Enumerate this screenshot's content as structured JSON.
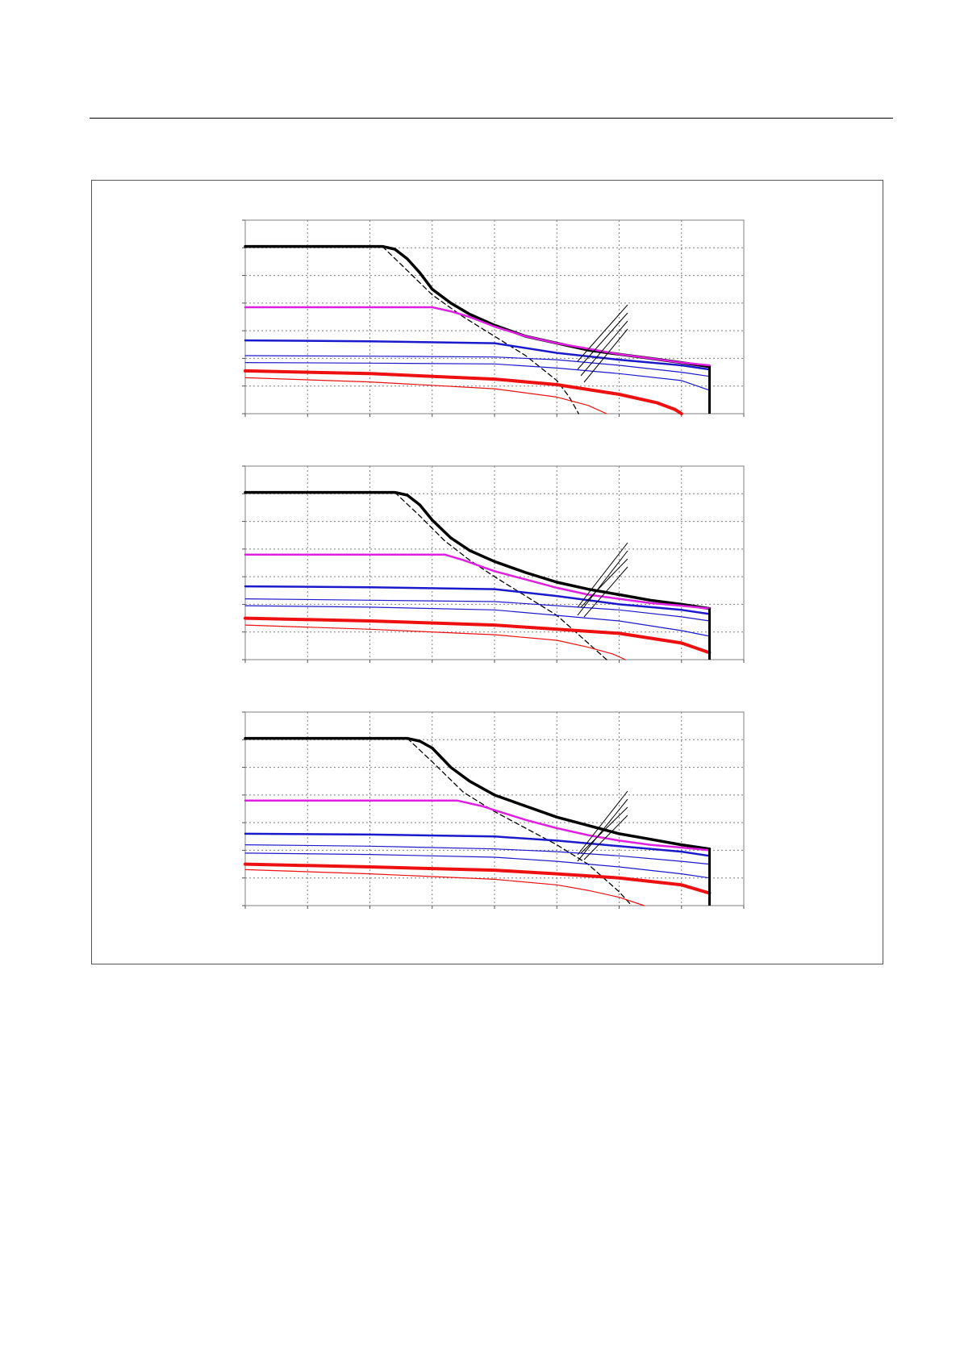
{
  "page": {
    "background": "#ffffff"
  },
  "colors": {
    "black": "#000000",
    "magenta": "#e020e0",
    "blue": "#1a1acc",
    "red": "#ee1010",
    "grid": "#7f7f7f"
  },
  "chart_data": [
    {
      "type": "line",
      "title": "",
      "xlabel": "",
      "ylabel": "",
      "xlim": [
        0,
        8
      ],
      "ylim": [
        0,
        7
      ],
      "x_gridlines": [
        1,
        2,
        3,
        4,
        5,
        6,
        7
      ],
      "y_gridlines": [
        1,
        2,
        3,
        4,
        5,
        6
      ],
      "grid": true,
      "end_x": 7.45,
      "series": [
        {
          "color": "black",
          "width": 3.5,
          "dash": false,
          "x": [
            0,
            2.2,
            2.4,
            2.6,
            2.8,
            3.0,
            3.3,
            3.6,
            4.0,
            4.5,
            5.0,
            5.5,
            6.0,
            6.5,
            7.0,
            7.45
          ],
          "y": [
            6.05,
            6.05,
            5.95,
            5.6,
            5.1,
            4.5,
            4.0,
            3.6,
            3.2,
            2.8,
            2.55,
            2.3,
            2.15,
            2.0,
            1.85,
            1.7
          ]
        },
        {
          "color": "black",
          "width": 1.3,
          "dash": true,
          "x": [
            2.2,
            2.5,
            3.0,
            3.5,
            4.0,
            4.5,
            5.0,
            5.2,
            5.35
          ],
          "y": [
            6.05,
            5.4,
            4.3,
            3.5,
            2.8,
            2.1,
            1.2,
            0.6,
            0.0
          ]
        },
        {
          "color": "magenta",
          "width": 2.5,
          "dash": false,
          "x": [
            0,
            3.0,
            3.3,
            3.6,
            4.0,
            4.5,
            5.0,
            5.5,
            6.0,
            6.5,
            7.0,
            7.45
          ],
          "y": [
            3.85,
            3.85,
            3.7,
            3.5,
            3.15,
            2.8,
            2.55,
            2.35,
            2.15,
            2.0,
            1.85,
            1.75
          ]
        },
        {
          "color": "blue",
          "width": 2.5,
          "dash": false,
          "x": [
            0,
            2.0,
            4.0,
            5.0,
            6.0,
            7.0,
            7.45
          ],
          "y": [
            2.65,
            2.62,
            2.55,
            2.2,
            1.95,
            1.75,
            1.6
          ]
        },
        {
          "color": "blue",
          "width": 1.2,
          "dash": false,
          "x": [
            0,
            2.0,
            4.0,
            5.0,
            6.0,
            7.0,
            7.45
          ],
          "y": [
            2.1,
            2.08,
            2.05,
            1.95,
            1.75,
            1.5,
            1.35
          ]
        },
        {
          "color": "blue",
          "width": 1.2,
          "dash": false,
          "x": [
            0,
            2.0,
            4.0,
            5.0,
            6.0,
            7.0,
            7.45
          ],
          "y": [
            1.85,
            1.83,
            1.8,
            1.65,
            1.45,
            1.2,
            0.85
          ]
        },
        {
          "color": "red",
          "width": 4.0,
          "dash": false,
          "x": [
            0,
            2.0,
            4.0,
            5.0,
            6.0,
            6.6,
            6.9,
            7.0
          ],
          "y": [
            1.55,
            1.45,
            1.25,
            1.05,
            0.7,
            0.4,
            0.15,
            0.0
          ]
        },
        {
          "color": "red",
          "width": 1.2,
          "dash": false,
          "x": [
            0,
            2.0,
            4.0,
            5.0,
            5.5,
            5.8
          ],
          "y": [
            1.3,
            1.15,
            0.9,
            0.6,
            0.3,
            0.0
          ]
        }
      ]
    },
    {
      "type": "line",
      "title": "",
      "xlabel": "",
      "ylabel": "",
      "xlim": [
        0,
        8
      ],
      "ylim": [
        0,
        7
      ],
      "x_gridlines": [
        1,
        2,
        3,
        4,
        5,
        6,
        7
      ],
      "y_gridlines": [
        1,
        2,
        3,
        4,
        5,
        6
      ],
      "grid": true,
      "end_x": 7.45,
      "series": [
        {
          "color": "black",
          "width": 3.5,
          "dash": false,
          "x": [
            0,
            2.4,
            2.6,
            2.8,
            3.0,
            3.3,
            3.6,
            4.0,
            4.5,
            5.0,
            5.5,
            6.0,
            6.5,
            7.0,
            7.45
          ],
          "y": [
            6.05,
            6.05,
            5.95,
            5.6,
            5.05,
            4.4,
            3.95,
            3.55,
            3.15,
            2.8,
            2.55,
            2.35,
            2.15,
            2.0,
            1.85
          ]
        },
        {
          "color": "black",
          "width": 1.3,
          "dash": true,
          "x": [
            2.4,
            2.8,
            3.2,
            3.6,
            4.0,
            4.5,
            5.0,
            5.5,
            5.8
          ],
          "y": [
            6.05,
            5.2,
            4.3,
            3.6,
            3.0,
            2.3,
            1.6,
            0.6,
            0.0
          ]
        },
        {
          "color": "magenta",
          "width": 2.5,
          "dash": false,
          "x": [
            0,
            3.2,
            3.5,
            4.0,
            4.5,
            5.0,
            5.5,
            6.0,
            6.5,
            7.0,
            7.45
          ],
          "y": [
            3.8,
            3.8,
            3.6,
            3.2,
            2.9,
            2.6,
            2.35,
            2.2,
            2.05,
            1.95,
            1.85
          ]
        },
        {
          "color": "blue",
          "width": 2.5,
          "dash": false,
          "x": [
            0,
            2.0,
            4.0,
            5.0,
            6.0,
            7.0,
            7.45
          ],
          "y": [
            2.65,
            2.62,
            2.55,
            2.3,
            2.0,
            1.8,
            1.65
          ]
        },
        {
          "color": "blue",
          "width": 1.2,
          "dash": false,
          "x": [
            0,
            2.0,
            4.0,
            5.0,
            6.0,
            7.0,
            7.45
          ],
          "y": [
            2.2,
            2.15,
            2.1,
            1.95,
            1.8,
            1.55,
            1.4
          ]
        },
        {
          "color": "blue",
          "width": 1.2,
          "dash": false,
          "x": [
            0,
            2.0,
            4.0,
            5.0,
            6.0,
            7.0,
            7.45
          ],
          "y": [
            1.95,
            1.9,
            1.8,
            1.6,
            1.4,
            1.05,
            0.85
          ]
        },
        {
          "color": "red",
          "width": 4.0,
          "dash": false,
          "x": [
            0,
            2.0,
            4.0,
            5.0,
            6.0,
            7.0,
            7.45
          ],
          "y": [
            1.5,
            1.4,
            1.25,
            1.1,
            0.95,
            0.6,
            0.25
          ]
        },
        {
          "color": "red",
          "width": 1.2,
          "dash": false,
          "x": [
            0,
            2.0,
            4.0,
            5.0,
            5.5,
            5.9,
            6.1
          ],
          "y": [
            1.25,
            1.1,
            0.9,
            0.7,
            0.45,
            0.2,
            0.0
          ]
        }
      ]
    },
    {
      "type": "line",
      "title": "",
      "xlabel": "",
      "ylabel": "",
      "xlim": [
        0,
        8
      ],
      "ylim": [
        0,
        7
      ],
      "x_gridlines": [
        1,
        2,
        3,
        4,
        5,
        6,
        7
      ],
      "y_gridlines": [
        1,
        2,
        3,
        4,
        5,
        6
      ],
      "grid": true,
      "end_x": 7.45,
      "series": [
        {
          "color": "black",
          "width": 3.5,
          "dash": false,
          "x": [
            0,
            2.6,
            2.8,
            3.0,
            3.3,
            3.6,
            4.0,
            4.5,
            5.0,
            5.5,
            6.0,
            6.5,
            7.0,
            7.45
          ],
          "y": [
            6.05,
            6.05,
            5.95,
            5.7,
            5.0,
            4.5,
            4.0,
            3.6,
            3.2,
            2.9,
            2.6,
            2.4,
            2.2,
            2.05
          ]
        },
        {
          "color": "black",
          "width": 1.3,
          "dash": true,
          "x": [
            2.6,
            3.0,
            3.5,
            4.0,
            4.5,
            5.0,
            5.5,
            6.0,
            6.2
          ],
          "y": [
            6.05,
            5.2,
            4.1,
            3.4,
            2.8,
            2.2,
            1.5,
            0.5,
            0.0
          ]
        },
        {
          "color": "magenta",
          "width": 2.5,
          "dash": false,
          "x": [
            0,
            3.4,
            3.8,
            4.0,
            4.5,
            5.0,
            5.5,
            6.0,
            6.5,
            7.0,
            7.45
          ],
          "y": [
            3.8,
            3.8,
            3.6,
            3.45,
            3.1,
            2.8,
            2.55,
            2.35,
            2.2,
            2.1,
            2.0
          ]
        },
        {
          "color": "blue",
          "width": 2.5,
          "dash": false,
          "x": [
            0,
            2.0,
            4.0,
            5.0,
            6.0,
            7.0,
            7.45
          ],
          "y": [
            2.6,
            2.57,
            2.5,
            2.35,
            2.15,
            1.95,
            1.8
          ]
        },
        {
          "color": "blue",
          "width": 1.2,
          "dash": false,
          "x": [
            0,
            2.0,
            4.0,
            5.0,
            6.0,
            7.0,
            7.45
          ],
          "y": [
            2.2,
            2.15,
            2.05,
            1.95,
            1.8,
            1.6,
            1.5
          ]
        },
        {
          "color": "blue",
          "width": 1.2,
          "dash": false,
          "x": [
            0,
            2.0,
            4.0,
            5.0,
            6.0,
            7.0,
            7.45
          ],
          "y": [
            1.9,
            1.85,
            1.75,
            1.6,
            1.4,
            1.15,
            1.0
          ]
        },
        {
          "color": "red",
          "width": 4.0,
          "dash": false,
          "x": [
            0,
            2.0,
            4.0,
            5.0,
            6.0,
            7.0,
            7.45
          ],
          "y": [
            1.5,
            1.4,
            1.28,
            1.15,
            1.0,
            0.75,
            0.45
          ]
        },
        {
          "color": "red",
          "width": 1.2,
          "dash": false,
          "x": [
            0,
            2.0,
            4.0,
            5.0,
            5.5,
            6.0,
            6.4
          ],
          "y": [
            1.3,
            1.15,
            0.95,
            0.75,
            0.55,
            0.3,
            0.0
          ]
        }
      ]
    }
  ]
}
